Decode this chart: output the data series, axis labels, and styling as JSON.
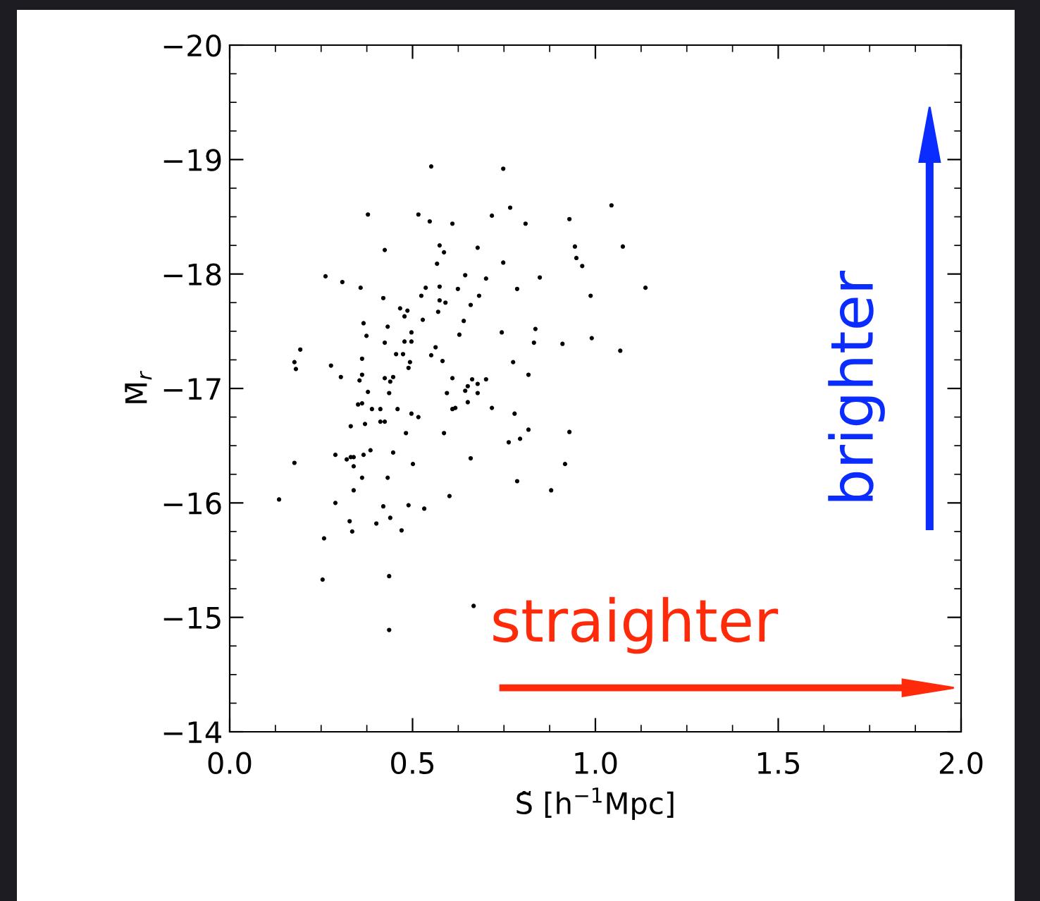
{
  "chart_data": {
    "type": "scatter",
    "xlabel": "S̃ [h$^{−1}$Mpc]",
    "ylabel": "M̄$_{r}$",
    "annotations": [
      "straighter",
      "brighter"
    ],
    "marker": "circle",
    "grid": false,
    "xlim": [
      0.0,
      2.0
    ],
    "xticks": [
      {
        "value": 0.0,
        "label": "0.0"
      },
      {
        "value": 0.5,
        "label": "0.5"
      },
      {
        "value": 1.0,
        "label": "1.0"
      },
      {
        "value": 1.5,
        "label": "1.5"
      },
      {
        "value": 2.0,
        "label": "2.0"
      }
    ],
    "ylim": [
      -14,
      -20
    ],
    "yticks": [
      {
        "value": -20,
        "label": "−20"
      },
      {
        "value": -19,
        "label": "−19"
      },
      {
        "value": -18,
        "label": "−18"
      },
      {
        "value": -17,
        "label": "−17"
      },
      {
        "value": -16,
        "label": "−16"
      },
      {
        "value": -15,
        "label": "−15"
      },
      {
        "value": -14,
        "label": "−14"
      }
    ],
    "series": [
      {
        "color": "#000000",
        "x": [
          0.551,
          0.748,
          0.378,
          0.516,
          0.547,
          0.609,
          0.717,
          0.767,
          0.809,
          0.929,
          0.424,
          0.574,
          0.586,
          0.678,
          0.944,
          0.948,
          0.567,
          0.748,
          0.262,
          0.308,
          0.644,
          0.701,
          0.848,
          0.358,
          0.536,
          0.574,
          0.624,
          0.786,
          0.42,
          0.524,
          0.682,
          0.466,
          0.486,
          0.478,
          0.574,
          0.59,
          0.659,
          0.57,
          0.528,
          0.64,
          0.366,
          0.432,
          0.374,
          0.497,
          0.628,
          0.744,
          0.836,
          0.424,
          0.478,
          0.497,
          0.832,
          0.91,
          0.193,
          0.563,
          0.362,
          0.455,
          0.474,
          0.551,
          0.582,
          0.775,
          0.177,
          0.181,
          0.277,
          0.493,
          0.489,
          0.304,
          0.362,
          0.355,
          0.424,
          0.447,
          0.439,
          0.609,
          0.663,
          0.651,
          0.678,
          0.701,
          0.817,
          0.644,
          0.378,
          0.436,
          0.594,
          0.678,
          0.351,
          0.362,
          0.389,
          0.412,
          0.459,
          0.497,
          0.516,
          0.609,
          0.617,
          0.651,
          0.717,
          0.779,
          0.331,
          0.37,
          0.412,
          0.424,
          0.482,
          0.586,
          0.817,
          0.794,
          0.763,
          0.929,
          0.289,
          0.32,
          0.331,
          0.339,
          0.339,
          0.366,
          0.385,
          0.447,
          0.501,
          0.659,
          0.177,
          0.362,
          0.432,
          0.786,
          0.917,
          0.339,
          0.601,
          0.879,
          0.135,
          0.289,
          0.42,
          0.489,
          0.532,
          0.328,
          0.401,
          0.439,
          0.335,
          0.47,
          0.258,
          0.254,
          0.436,
          0.667,
          0.436,
          1.044,
          1.075,
          0.964,
          0.987,
          1.137,
          0.99,
          1.068
        ],
        "values": [
          -18.94,
          -18.92,
          -18.52,
          -18.52,
          -18.46,
          -18.44,
          -18.51,
          -18.58,
          -18.44,
          -18.48,
          -18.21,
          -18.25,
          -18.19,
          -18.23,
          -18.24,
          -18.14,
          -18.09,
          -18.1,
          -17.98,
          -17.93,
          -17.99,
          -17.96,
          -17.97,
          -17.88,
          -17.88,
          -17.89,
          -17.87,
          -17.87,
          -17.79,
          -17.81,
          -17.81,
          -17.7,
          -17.68,
          -17.63,
          -17.77,
          -17.75,
          -17.73,
          -17.67,
          -17.6,
          -17.59,
          -17.57,
          -17.54,
          -17.46,
          -17.49,
          -17.47,
          -17.49,
          -17.52,
          -17.4,
          -17.41,
          -17.41,
          -17.4,
          -17.39,
          -17.34,
          -17.36,
          -17.26,
          -17.3,
          -17.3,
          -17.29,
          -17.24,
          -17.23,
          -17.23,
          -17.17,
          -17.2,
          -17.23,
          -17.18,
          -17.1,
          -17.12,
          -17.07,
          -17.09,
          -17.1,
          -17.06,
          -17.09,
          -17.08,
          -17.02,
          -17.04,
          -17.08,
          -17.12,
          -16.98,
          -16.97,
          -16.96,
          -16.96,
          -16.96,
          -16.86,
          -16.87,
          -16.82,
          -16.82,
          -16.82,
          -16.78,
          -16.75,
          -16.82,
          -16.83,
          -16.88,
          -16.83,
          -16.78,
          -16.67,
          -16.69,
          -16.71,
          -16.71,
          -16.61,
          -16.61,
          -16.64,
          -16.56,
          -16.53,
          -16.62,
          -16.42,
          -16.38,
          -16.4,
          -16.4,
          -16.32,
          -16.42,
          -16.46,
          -16.44,
          -16.34,
          -16.39,
          -16.35,
          -16.22,
          -16.22,
          -16.19,
          -16.34,
          -16.11,
          -16.06,
          -16.11,
          -16.03,
          -16.0,
          -15.97,
          -15.98,
          -15.95,
          -15.84,
          -15.82,
          -15.87,
          -15.75,
          -15.76,
          -15.69,
          -15.33,
          -15.36,
          -15.1,
          -14.89,
          -18.6,
          -18.24,
          -18.07,
          -17.81,
          -17.88,
          -17.44,
          -17.33
        ]
      }
    ]
  }
}
